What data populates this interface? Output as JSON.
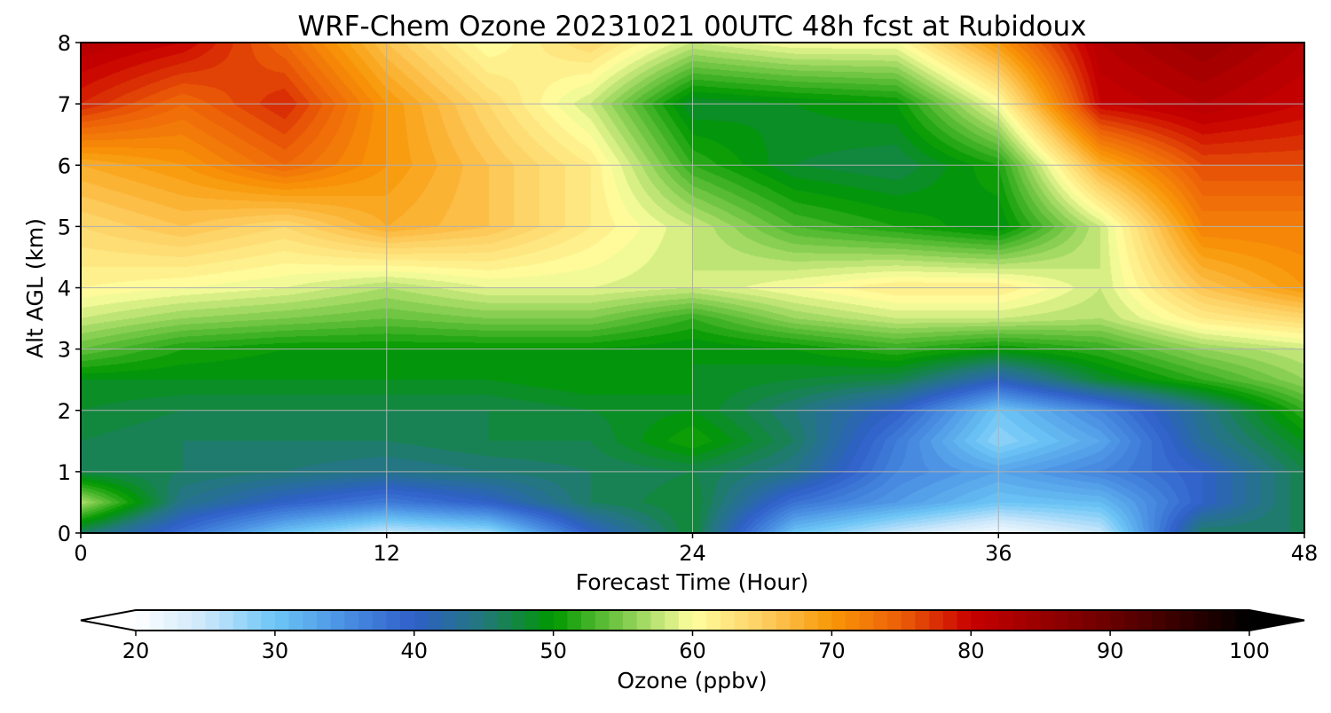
{
  "chart_data": {
    "type": "heatmap",
    "subtype": "filled-contour time-height cross section",
    "title": "WRF-Chem Ozone  20231021 00UTC 48h fcst at Rubidoux",
    "xlabel": "Forecast Time (Hour)",
    "ylabel": "Alt AGL (km)",
    "xlim": [
      0,
      48
    ],
    "ylim": [
      0,
      8
    ],
    "xticks": [
      0,
      12,
      24,
      36,
      48
    ],
    "yticks": [
      0,
      1,
      2,
      3,
      4,
      5,
      6,
      7,
      8
    ],
    "grid": true,
    "x": [
      0,
      4,
      8,
      12,
      16,
      20,
      24,
      28,
      32,
      36,
      40,
      44,
      48
    ],
    "y": [
      0,
      0.5,
      1,
      1.5,
      2,
      2.5,
      3,
      3.5,
      4,
      5,
      6,
      7,
      8
    ],
    "z_units": "ppbv",
    "z": [
      [
        46,
        38,
        30,
        25,
        27,
        40,
        48,
        30,
        25,
        21,
        25,
        46,
        46
      ],
      [
        57,
        44,
        40,
        37,
        40,
        46,
        48,
        38,
        34,
        30,
        31,
        40,
        47
      ],
      [
        47,
        46,
        45,
        44,
        45,
        46,
        47,
        44,
        36,
        33,
        36,
        40,
        47
      ],
      [
        47,
        46,
        46,
        46,
        47,
        47,
        51,
        46,
        37,
        28,
        33,
        43,
        49
      ],
      [
        48,
        47,
        47,
        47,
        47,
        48,
        49,
        45,
        40,
        30,
        36,
        44,
        52
      ],
      [
        49,
        49,
        49,
        49,
        49,
        50,
        49,
        48,
        47,
        41,
        48,
        52,
        56
      ],
      [
        54,
        51,
        50,
        50,
        50,
        50,
        49,
        50,
        52,
        50,
        52,
        56,
        58
      ],
      [
        58,
        56,
        55,
        54,
        55,
        55,
        52,
        56,
        58,
        58,
        57,
        62,
        64
      ],
      [
        61,
        60,
        59,
        57,
        59,
        59,
        58,
        60,
        62,
        62,
        58,
        66,
        70
      ],
      [
        64,
        66,
        64,
        68,
        66,
        62,
        58,
        53,
        51,
        49,
        58,
        72,
        72
      ],
      [
        68,
        70,
        74,
        70,
        66,
        62,
        52,
        48,
        47,
        51,
        68,
        76,
        76
      ],
      [
        78,
        74,
        78,
        70,
        64,
        58,
        48,
        49,
        50,
        60,
        80,
        82,
        80
      ],
      [
        82,
        80,
        74,
        66,
        60,
        64,
        58,
        60,
        60,
        70,
        82,
        85,
        82
      ]
    ],
    "colorbar": {
      "label": "Ozone  (ppbv)",
      "min": 20,
      "max": 100,
      "ticks": [
        20,
        30,
        40,
        50,
        60,
        70,
        80,
        90,
        100
      ],
      "extend": "both",
      "colormap": [
        [
          20,
          "#ffffff"
        ],
        [
          25,
          "#cbe7fb"
        ],
        [
          30,
          "#6cc6f6"
        ],
        [
          35,
          "#4a8fe3"
        ],
        [
          40,
          "#2f5fc9"
        ],
        [
          45,
          "#22787a"
        ],
        [
          50,
          "#009800"
        ],
        [
          55,
          "#7cca4a"
        ],
        [
          60,
          "#ffffa0"
        ],
        [
          65,
          "#fdcf62"
        ],
        [
          70,
          "#f99707"
        ],
        [
          75,
          "#ec5e08"
        ],
        [
          80,
          "#c80000"
        ],
        [
          90,
          "#6a0000"
        ],
        [
          100,
          "#000000"
        ]
      ]
    }
  }
}
